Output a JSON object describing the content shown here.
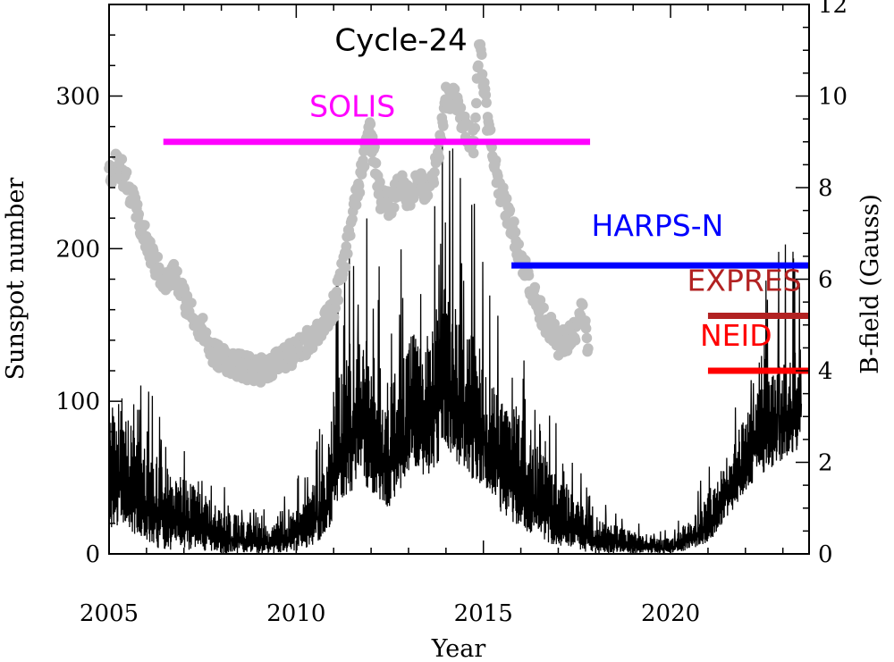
{
  "chart_data": {
    "type": "line",
    "title": "",
    "xlabel": "Year",
    "ylabel_left": "Sunspot number",
    "ylabel_right": "B-field (Gauss)",
    "xlim": [
      2005,
      2023.7
    ],
    "ylim_left": [
      0,
      360
    ],
    "ylim_right": [
      0,
      12
    ],
    "x_ticks": [
      2005,
      2010,
      2015,
      2020
    ],
    "x_tick_labels": [
      "2005",
      "2010",
      "2015",
      "2020"
    ],
    "y_left_ticks": [
      0,
      100,
      200,
      300
    ],
    "y_left_tick_labels": [
      "0",
      "100",
      "200",
      "300"
    ],
    "y_right_ticks": [
      0,
      2,
      4,
      6,
      8,
      10,
      12
    ],
    "y_right_tick_labels": [
      "0",
      "2",
      "4",
      "6",
      "8",
      "10",
      "12"
    ],
    "annotations": [
      {
        "text": "Cycle-24",
        "x": 2012.8,
        "y": 330
      }
    ],
    "series": [
      {
        "kind": "line",
        "axis": "left",
        "color": "#000000",
        "envelope": {
          "x": [
            2005.0,
            2005.3,
            2005.6,
            2006.0,
            2006.5,
            2007.0,
            2007.5,
            2008.0,
            2008.5,
            2009.0,
            2009.5,
            2010.0,
            2010.4,
            2010.8,
            2011.0,
            2011.3,
            2011.6,
            2011.9,
            2012.2,
            2012.5,
            2012.8,
            2013.1,
            2013.4,
            2013.7,
            2014.0,
            2014.3,
            2014.6,
            2014.9,
            2015.2,
            2015.5,
            2015.8,
            2016.1,
            2016.5,
            2016.9,
            2017.3,
            2017.7,
            2018.0,
            2018.5,
            2019.0,
            2019.5,
            2020.0,
            2020.4,
            2020.8,
            2021.1,
            2021.4,
            2021.7,
            2022.0,
            2022.3,
            2022.6,
            2022.9,
            2023.2,
            2023.5
          ],
          "high": [
            95,
            105,
            90,
            70,
            60,
            50,
            40,
            30,
            25,
            18,
            20,
            30,
            45,
            60,
            110,
            130,
            150,
            140,
            125,
            110,
            130,
            150,
            135,
            160,
            180,
            160,
            150,
            140,
            120,
            100,
            100,
            90,
            70,
            55,
            45,
            30,
            25,
            20,
            15,
            12,
            10,
            20,
            30,
            45,
            60,
            75,
            90,
            105,
            115,
            125,
            130,
            135
          ],
          "low": [
            15,
            20,
            10,
            5,
            3,
            2,
            1,
            0,
            0,
            0,
            0,
            2,
            5,
            10,
            25,
            35,
            45,
            40,
            35,
            30,
            40,
            55,
            45,
            55,
            70,
            60,
            50,
            45,
            35,
            25,
            20,
            15,
            10,
            5,
            3,
            1,
            0,
            0,
            0,
            0,
            0,
            2,
            5,
            10,
            20,
            30,
            40,
            50,
            55,
            60,
            65,
            70
          ]
        }
      },
      {
        "kind": "points",
        "axis": "right",
        "color": "#bebebe",
        "x": [
          2005.0,
          2005.25,
          2005.5,
          2005.75,
          2006.0,
          2006.25,
          2006.5,
          2006.75,
          2007.0,
          2007.25,
          2007.5,
          2007.75,
          2008.0,
          2008.25,
          2008.5,
          2008.75,
          2009.0,
          2009.25,
          2009.5,
          2009.75,
          2010.0,
          2010.25,
          2010.5,
          2010.75,
          2011.0,
          2011.25,
          2011.5,
          2011.75,
          2011.95,
          2012.1,
          2012.25,
          2012.5,
          2012.75,
          2013.0,
          2013.25,
          2013.5,
          2013.75,
          2014.0,
          2014.25,
          2014.5,
          2014.75,
          2014.9,
          2015.1,
          2015.3,
          2015.5,
          2015.75,
          2016.0,
          2016.25,
          2016.5,
          2016.75,
          2017.0,
          2017.25,
          2017.5,
          2017.65,
          2017.8
        ],
        "y": [
          8.2,
          8.6,
          8.0,
          7.4,
          6.8,
          6.3,
          5.9,
          6.1,
          5.6,
          5.2,
          4.9,
          4.4,
          4.3,
          4.2,
          4.1,
          4.05,
          4.0,
          4.1,
          4.2,
          4.3,
          4.4,
          4.6,
          4.8,
          5.0,
          5.4,
          6.2,
          7.4,
          8.3,
          9.4,
          8.6,
          7.8,
          7.6,
          8.1,
          7.8,
          8.2,
          7.8,
          8.5,
          10.0,
          9.9,
          9.3,
          9.0,
          11.3,
          9.5,
          8.5,
          7.8,
          7.2,
          6.5,
          5.9,
          5.3,
          5.0,
          4.6,
          4.7,
          4.9,
          5.4,
          4.4
        ]
      }
    ],
    "instruments": [
      {
        "name": "SOLIS",
        "color": "#ff00ff",
        "x_start": 2006.45,
        "x_end": 2017.85,
        "y_gauss": 9.0
      },
      {
        "name": "HARPS-N",
        "color": "#0000ff",
        "x_start": 2015.75,
        "x_end": 2023.7,
        "y_gauss": 6.3
      },
      {
        "name": "EXPRES",
        "color": "#b22222",
        "x_start": 2021.0,
        "x_end": 2023.7,
        "y_gauss": 5.2
      },
      {
        "name": "NEID",
        "color": "#ff0000",
        "x_start": 2021.0,
        "x_end": 2023.7,
        "y_gauss": 4.0
      }
    ]
  }
}
